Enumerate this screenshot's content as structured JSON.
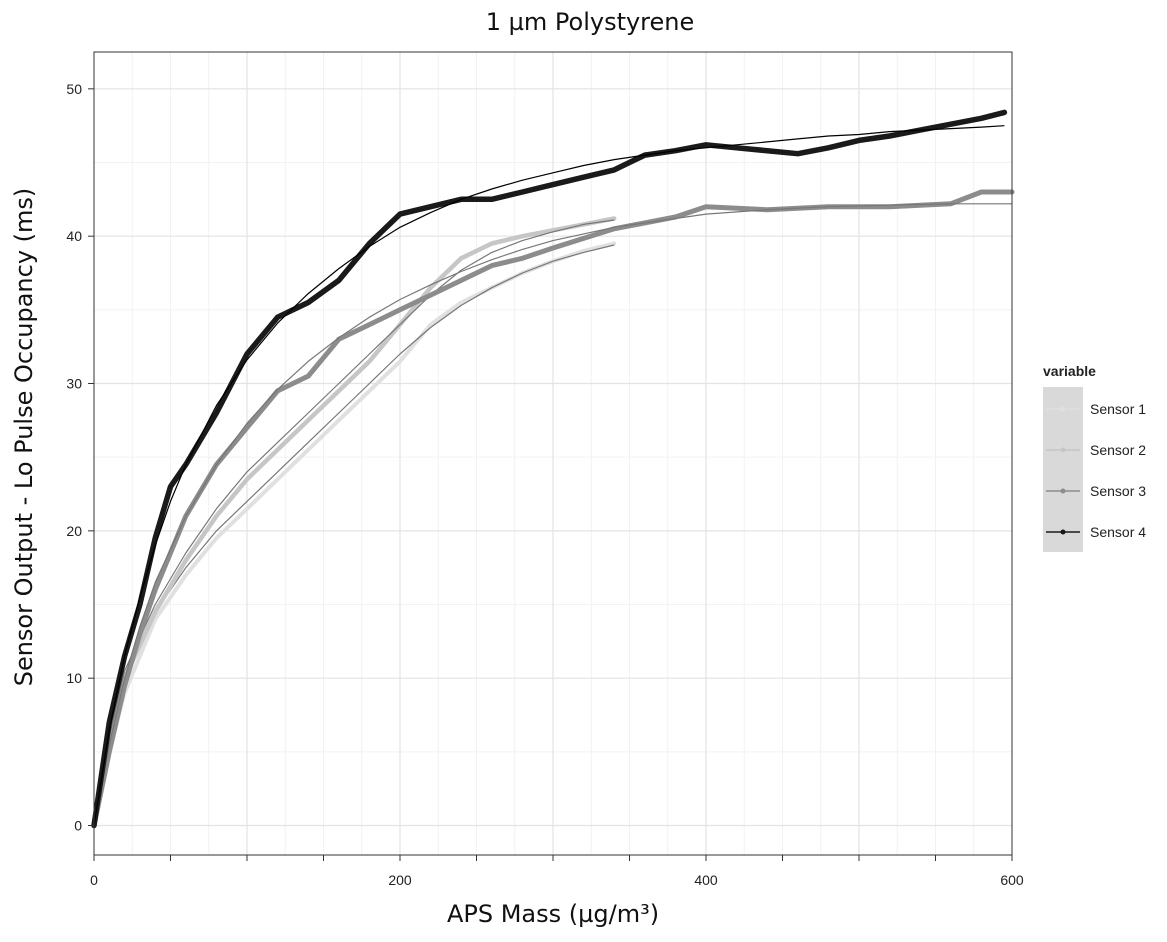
{
  "chart_data": {
    "type": "line",
    "title": "1 µm Polystyrene",
    "xlabel": "APS Mass (µg/m³)",
    "ylabel": "Sensor Output - Lo Pulse Occupancy (ms)",
    "xlim": [
      0,
      600
    ],
    "ylim": [
      -2,
      52.5
    ],
    "xticks": [
      0,
      200,
      400,
      600
    ],
    "yticks": [
      0,
      10,
      20,
      30,
      40,
      50
    ],
    "grid": true,
    "legend": {
      "title": "variable",
      "position": "right"
    },
    "series": [
      {
        "name": "Sensor 1",
        "color": "#e0e0e0",
        "x": [
          0,
          10,
          20,
          40,
          60,
          80,
          100,
          120,
          140,
          160,
          180,
          200,
          220,
          240,
          260,
          280,
          300,
          320,
          340
        ],
        "y": [
          0,
          5,
          9,
          14,
          17,
          19.5,
          21.5,
          23.5,
          25.5,
          27.5,
          29.5,
          31.5,
          34,
          35.5,
          36.5,
          37.5,
          38.3,
          39,
          39.5
        ],
        "fit": [
          0,
          5.5,
          10,
          14.5,
          17.5,
          20,
          22,
          24,
          26,
          28,
          30,
          32,
          33.8,
          35.3,
          36.5,
          37.5,
          38.3,
          38.9,
          39.4
        ]
      },
      {
        "name": "Sensor 2",
        "color": "#c6c6c6",
        "x": [
          0,
          10,
          20,
          40,
          60,
          80,
          100,
          120,
          140,
          160,
          180,
          200,
          220,
          240,
          260,
          280,
          300,
          320,
          340
        ],
        "y": [
          0,
          5.5,
          10,
          14.5,
          18,
          21,
          23.5,
          25.5,
          27.5,
          29.5,
          31.5,
          34,
          36.5,
          38.5,
          39.5,
          40,
          40.4,
          40.8,
          41.2
        ],
        "fit": [
          0,
          6,
          10.5,
          15,
          18.5,
          21.5,
          24,
          26,
          28,
          30,
          32,
          34,
          36,
          37.7,
          38.9,
          39.7,
          40.3,
          40.8,
          41.1
        ]
      },
      {
        "name": "Sensor 3",
        "color": "#8c8c8c",
        "x": [
          0,
          10,
          20,
          30,
          40,
          60,
          80,
          100,
          120,
          140,
          160,
          180,
          200,
          220,
          240,
          260,
          280,
          300,
          340,
          380,
          400,
          440,
          480,
          520,
          560,
          580,
          600
        ],
        "y": [
          0,
          5,
          9.5,
          13,
          16,
          21,
          24.5,
          27,
          29.5,
          30.5,
          33,
          34,
          35,
          36,
          37,
          38,
          38.5,
          39.2,
          40.5,
          41.3,
          42,
          41.8,
          42,
          42,
          42.2,
          43,
          43
        ],
        "fit": [
          0,
          5.5,
          10,
          13.5,
          16.5,
          21,
          24.5,
          27.3,
          29.6,
          31.5,
          33.1,
          34.5,
          35.7,
          36.7,
          37.6,
          38.4,
          39.1,
          39.7,
          40.6,
          41.2,
          41.5,
          41.8,
          42,
          42.1,
          42.2,
          42.2,
          42.2
        ]
      },
      {
        "name": "Sensor 4",
        "color": "#1a1a1a",
        "x": [
          0,
          10,
          20,
          30,
          40,
          50,
          60,
          80,
          100,
          120,
          140,
          160,
          180,
          200,
          220,
          240,
          260,
          280,
          300,
          320,
          340,
          360,
          380,
          400,
          420,
          440,
          460,
          480,
          500,
          520,
          540,
          560,
          580,
          595
        ],
        "y": [
          0,
          7,
          11.5,
          15,
          19.5,
          23,
          24.5,
          28,
          32,
          34.5,
          35.5,
          37,
          39.5,
          41.5,
          42,
          42.5,
          42.5,
          43,
          43.5,
          44,
          44.5,
          45.5,
          45.8,
          46.2,
          46,
          45.8,
          45.6,
          46,
          46.5,
          46.8,
          47.2,
          47.6,
          48,
          48.4
        ],
        "fit": [
          0,
          6.5,
          11.5,
          15.5,
          19,
          22,
          24.5,
          28.5,
          31.6,
          34.1,
          36.1,
          37.8,
          39.3,
          40.6,
          41.6,
          42.5,
          43.2,
          43.8,
          44.3,
          44.8,
          45.2,
          45.5,
          45.8,
          46,
          46.2,
          46.4,
          46.6,
          46.8,
          46.9,
          47.1,
          47.2,
          47.3,
          47.4,
          47.5
        ]
      }
    ]
  }
}
